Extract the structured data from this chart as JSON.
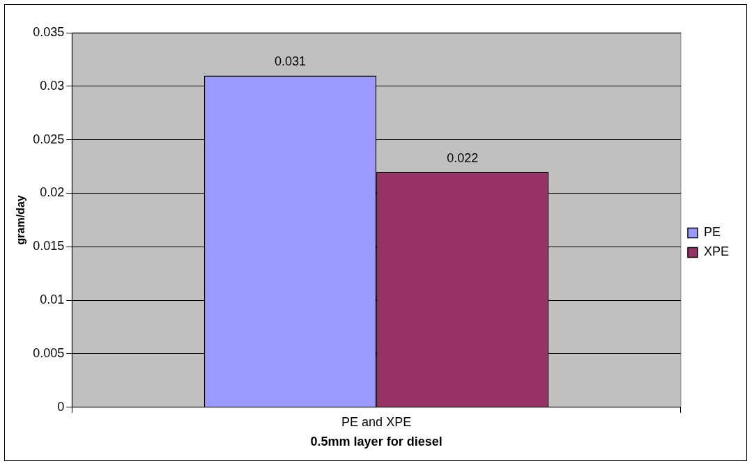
{
  "chart_data": {
    "type": "bar",
    "xlabel": "0.5mm layer for diesel",
    "ylabel": "gram/day",
    "categories": [
      "PE and XPE"
    ],
    "series": [
      {
        "name": "PE",
        "color": "#9999ff",
        "values": [
          0.031
        ]
      },
      {
        "name": "XPE",
        "color": "#993366",
        "values": [
          0.022
        ]
      }
    ],
    "ylim": [
      0,
      0.035
    ],
    "yticks": [
      0,
      0.005,
      0.01,
      0.015,
      0.02,
      0.025,
      0.03,
      0.035
    ],
    "grid": "y",
    "legend": "right",
    "data_labels": true
  }
}
